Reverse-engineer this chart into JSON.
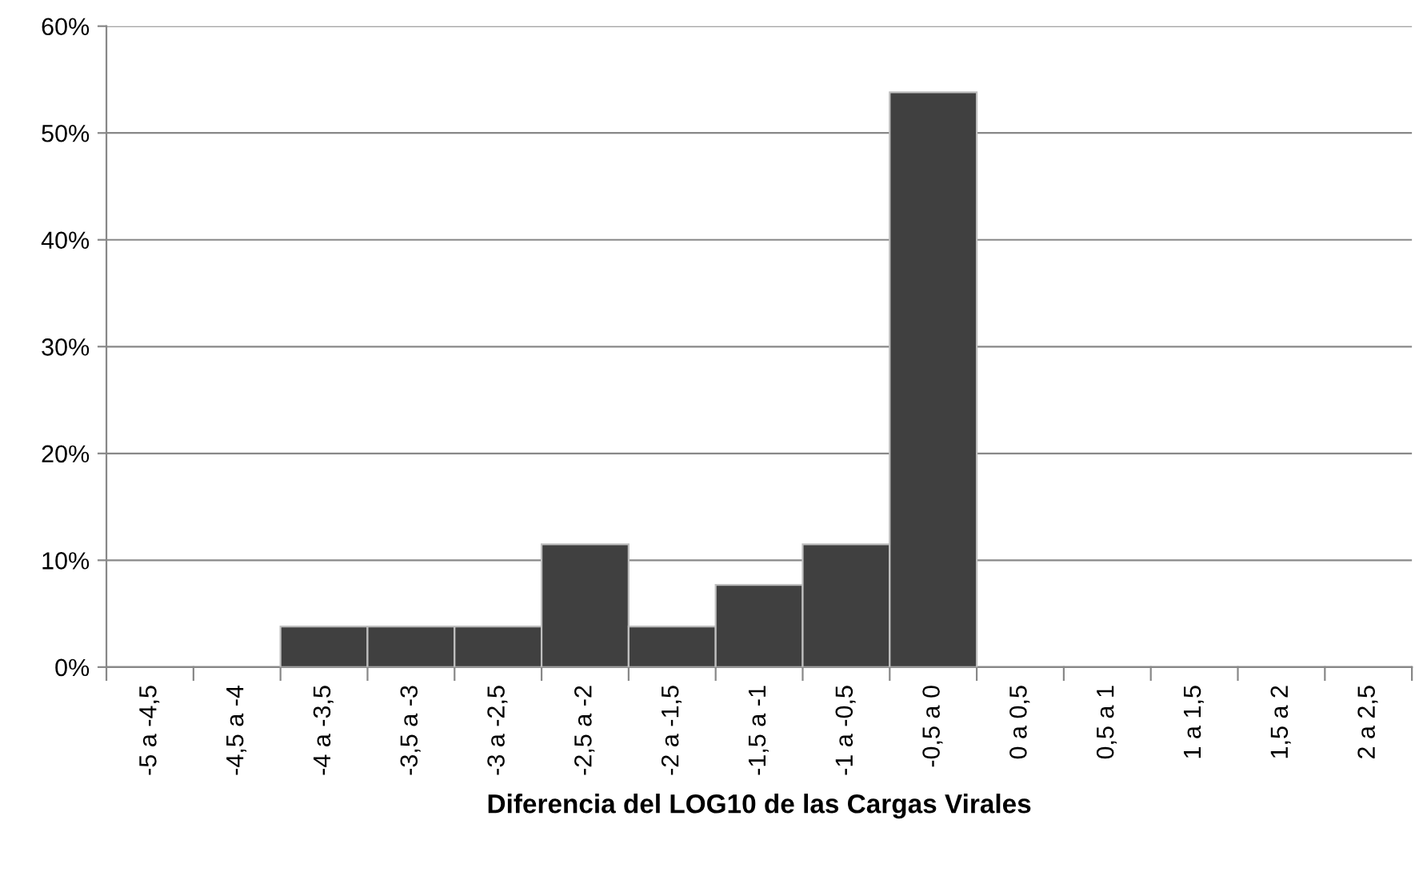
{
  "chart_data": {
    "type": "bar",
    "xlabel": "Diferencia del LOG10 de las Cargas Virales",
    "categories": [
      "-5 a -4,5",
      "-4,5 a -4",
      "-4 a -3,5",
      "-3,5 a -3",
      "-3 a -2,5",
      "-2,5 a -2",
      "-2 a -1,5",
      "-1,5 a -1",
      "-1 a -0,5",
      "-0,5 a 0",
      "0 a 0,5",
      "0,5 a 1",
      "1 a 1,5",
      "1,5 a 2",
      "2 a 2,5"
    ],
    "values": [
      0,
      0,
      3.8,
      3.8,
      3.8,
      11.5,
      3.8,
      7.7,
      11.5,
      53.8,
      0,
      0,
      0,
      0,
      0
    ],
    "color": "#404040",
    "ylim": [
      0,
      60
    ],
    "yticks": [
      {
        "value": 0,
        "label": "0%"
      },
      {
        "value": 10,
        "label": "10%"
      },
      {
        "value": 20,
        "label": "20%"
      },
      {
        "value": 30,
        "label": "30%"
      },
      {
        "value": 40,
        "label": "40%"
      },
      {
        "value": 50,
        "label": "50%"
      },
      {
        "value": 60,
        "label": "60%"
      }
    ],
    "grid": "y",
    "legend": false
  }
}
